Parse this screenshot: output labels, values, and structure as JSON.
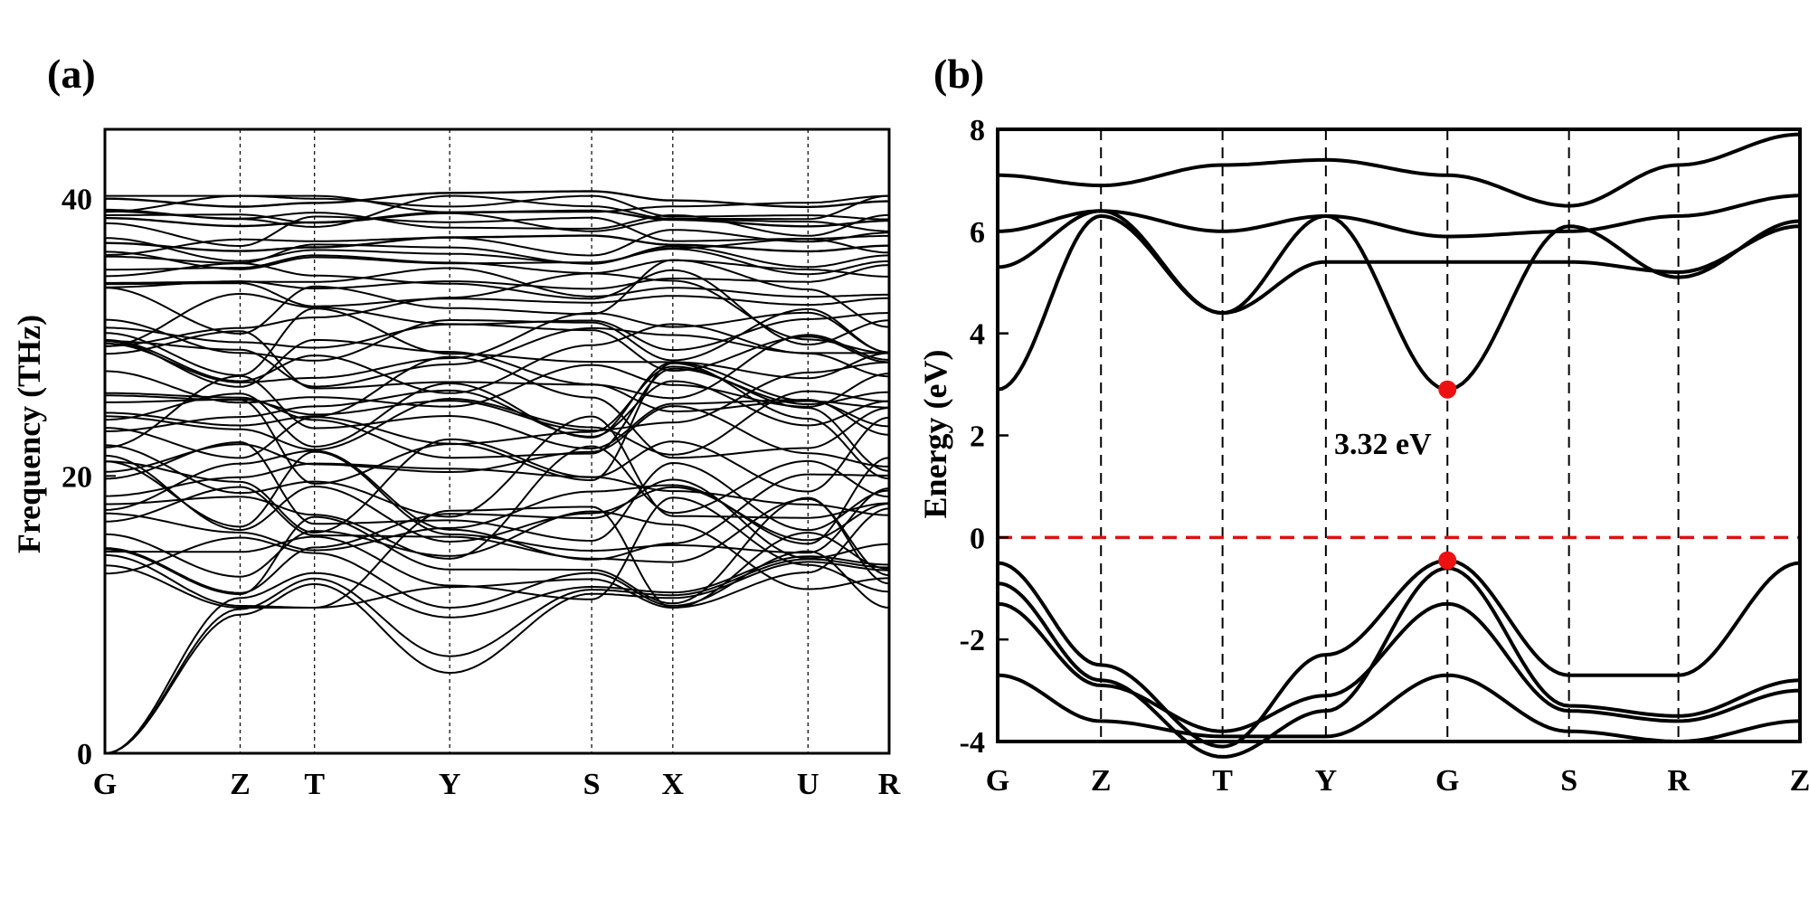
{
  "chart_data": [
    {
      "type": "line",
      "panel_label": "(a)",
      "title": "",
      "xlabel": "",
      "ylabel": "Frequency (THz)",
      "ylim": [
        0,
        45
      ],
      "y_ticks": [
        0,
        20,
        40
      ],
      "high_symmetry_points": [
        "G",
        "Z",
        "T",
        "Y",
        "S",
        "X",
        "U",
        "R"
      ],
      "point_positions": [
        0,
        1.0,
        1.55,
        2.55,
        3.6,
        4.2,
        5.2,
        5.8
      ],
      "grid": "dashed vertical lines at high-symmetry points",
      "line_color": "#000000",
      "acoustic_branches": [
        {
          "at_points": [
            0,
            10.0,
            12.2,
            5.8,
            11.5,
            11.2,
            13.8,
            13.2
          ]
        },
        {
          "at_points": [
            0,
            10.4,
            12.6,
            7.0,
            11.8,
            11.4,
            14.0,
            13.4
          ]
        },
        {
          "at_points": [
            0,
            11.2,
            13.0,
            9.8,
            12.0,
            11.6,
            14.2,
            13.6
          ]
        }
      ],
      "optical_band_range": [
        10.5,
        40.2
      ]
    },
    {
      "type": "line",
      "panel_label": "(b)",
      "title": "",
      "xlabel": "",
      "ylabel": "Energy (eV)",
      "ylim": [
        -4,
        8
      ],
      "y_ticks": [
        -4,
        -2,
        0,
        2,
        4,
        6,
        8
      ],
      "high_symmetry_points": [
        "G",
        "Z",
        "T",
        "Y",
        "G",
        "S",
        "R",
        "Z"
      ],
      "point_positions": [
        0,
        0.85,
        1.85,
        2.7,
        3.7,
        4.7,
        5.6,
        6.6
      ],
      "grid": "dashed vertical lines at high-symmetry points",
      "fermi_level": {
        "value": 0,
        "color": "#dd1111",
        "style": "dashed"
      },
      "band_gap": {
        "value": 3.32,
        "label": "3.32 eV",
        "cbm": {
          "k": "G",
          "energy": 2.9
        },
        "vbm": {
          "k": "G",
          "energy": -0.45
        },
        "marker_color": "#ee1111"
      },
      "line_color": "#000000",
      "conduction_bands": [
        {
          "at_points": [
            2.9,
            6.3,
            4.4,
            6.3,
            2.9,
            6.1,
            5.1,
            6.2
          ]
        },
        {
          "at_points": [
            5.3,
            6.4,
            4.4,
            5.4,
            5.4,
            5.4,
            5.2,
            6.1
          ]
        },
        {
          "at_points": [
            6.0,
            6.4,
            6.0,
            6.3,
            5.9,
            6.0,
            6.3,
            6.7
          ]
        },
        {
          "at_points": [
            7.1,
            6.9,
            7.3,
            7.4,
            7.1,
            6.5,
            7.3,
            7.9
          ]
        }
      ],
      "valence_bands": [
        {
          "at_points": [
            -0.5,
            -2.5,
            -4.1,
            -2.3,
            -0.45,
            -2.7,
            -2.7,
            -0.5
          ]
        },
        {
          "at_points": [
            -0.9,
            -2.8,
            -4.3,
            -3.4,
            -0.6,
            -3.3,
            -3.5,
            -2.8
          ]
        },
        {
          "at_points": [
            -1.3,
            -2.9,
            -3.8,
            -3.1,
            -1.3,
            -3.4,
            -3.6,
            -3.0
          ]
        },
        {
          "at_points": [
            -2.7,
            -3.6,
            -3.9,
            -3.9,
            -2.7,
            -3.8,
            -4.0,
            -3.6
          ]
        }
      ]
    }
  ]
}
